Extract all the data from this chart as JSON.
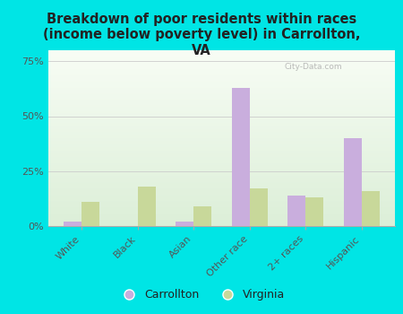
{
  "title": "Breakdown of poor residents within races\n(income below poverty level) in Carrollton,\nVA",
  "categories": [
    "White",
    "Black",
    "Asian",
    "Other race",
    "2+ races",
    "Hispanic"
  ],
  "carrollton_values": [
    2,
    0,
    2,
    63,
    14,
    40
  ],
  "virginia_values": [
    11,
    18,
    9,
    17,
    13,
    16
  ],
  "carrollton_color": "#c9aedd",
  "virginia_color": "#c8d89a",
  "bg_outer": "#00e5e5",
  "bg_chart_top": "#dcefd8",
  "bg_chart_bottom": "#f8fdf5",
  "yticks": [
    0,
    25,
    50,
    75
  ],
  "ylim": [
    0,
    80
  ],
  "bar_width": 0.32,
  "title_fontsize": 10.5,
  "tick_fontsize": 8,
  "legend_fontsize": 9
}
